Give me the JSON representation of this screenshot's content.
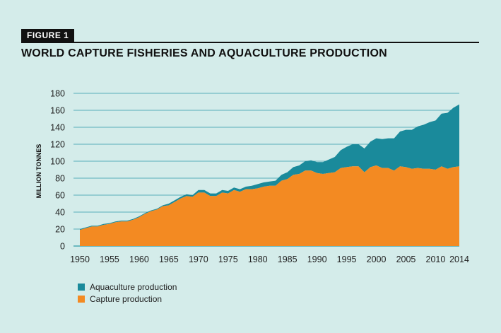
{
  "figure_label": "FIGURE 1",
  "title": "WORLD CAPTURE FISHERIES AND AQUACULTURE PRODUCTION",
  "colors": {
    "aquaculture": "#1a8a9b",
    "capture": "#f38a22",
    "gridline": "#2e9aa8",
    "background": "#d4ecea"
  },
  "chart_data": {
    "type": "area",
    "stacked": true,
    "ylabel": "MILLION TONNES",
    "xlabel": "",
    "ylim": [
      0,
      180
    ],
    "xlim": [
      1950,
      2014
    ],
    "y_ticks": [
      0,
      20,
      40,
      60,
      80,
      100,
      120,
      140,
      160,
      180
    ],
    "x_ticks": [
      1950,
      1955,
      1960,
      1965,
      1970,
      1975,
      1980,
      1985,
      1990,
      1995,
      2000,
      2005,
      2010,
      2014
    ],
    "grid": true,
    "legend_position": "bottom-left",
    "x": [
      1950,
      1951,
      1952,
      1953,
      1954,
      1955,
      1956,
      1957,
      1958,
      1959,
      1960,
      1961,
      1962,
      1963,
      1964,
      1965,
      1966,
      1967,
      1968,
      1969,
      1970,
      1971,
      1972,
      1973,
      1974,
      1975,
      1976,
      1977,
      1978,
      1979,
      1980,
      1981,
      1982,
      1983,
      1984,
      1985,
      1986,
      1987,
      1988,
      1989,
      1990,
      1991,
      1992,
      1993,
      1994,
      1995,
      1996,
      1997,
      1998,
      1999,
      2000,
      2001,
      2002,
      2003,
      2004,
      2005,
      2006,
      2007,
      2008,
      2009,
      2010,
      2011,
      2012,
      2013,
      2014
    ],
    "series": [
      {
        "name": "Capture production",
        "values": [
          19,
          21,
          23,
          23,
          25,
          26,
          28,
          29,
          29,
          31,
          34,
          38,
          41,
          43,
          47,
          48,
          52,
          56,
          59,
          58,
          63,
          63,
          59,
          59,
          63,
          62,
          66,
          64,
          67,
          67,
          68,
          70,
          71,
          71,
          77,
          79,
          84,
          85,
          89,
          89,
          86,
          85,
          86,
          87,
          92,
          93,
          94,
          94,
          87,
          93,
          95,
          92,
          92,
          89,
          94,
          93,
          91,
          92,
          91,
          91,
          90,
          94,
          91,
          93,
          94
        ]
      },
      {
        "name": "Aquaculture production",
        "values": [
          1,
          1,
          1,
          1,
          1,
          1,
          1,
          1,
          1,
          1,
          1,
          1,
          1,
          1,
          1,
          2,
          2,
          2,
          2,
          2,
          3,
          3,
          3,
          3,
          3,
          3,
          3,
          3,
          3,
          4,
          5,
          5,
          5,
          6,
          7,
          8,
          9,
          10,
          11,
          12,
          13,
          14,
          16,
          18,
          21,
          24,
          26,
          26,
          28,
          30,
          32,
          34,
          35,
          38,
          41,
          44,
          46,
          49,
          52,
          55,
          58,
          62,
          66,
          70,
          73
        ]
      }
    ]
  }
}
